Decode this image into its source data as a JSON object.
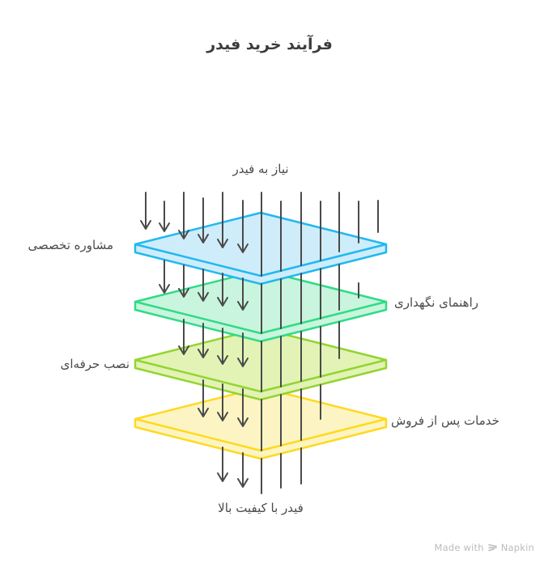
{
  "title": "فرآیند خرید فیدر",
  "diagram": {
    "input_label": "نیاز به فیدر",
    "output_label": "فیدر با کیفیت بالا",
    "arrow_color": "#4a4a4a",
    "layers": [
      {
        "label": "مشاوره تخصصی",
        "side": "left",
        "fill": "#cfecfa",
        "stroke": "#1fb9f0"
      },
      {
        "label": "راهنمای نگهداری",
        "side": "right",
        "fill": "#c9f4dd",
        "stroke": "#2edc86"
      },
      {
        "label": "نصب حرفه‌ای",
        "side": "left",
        "fill": "#e2f3b5",
        "stroke": "#93d431"
      },
      {
        "label": "خدمات پس از فروش",
        "side": "right",
        "fill": "#fcf5c3",
        "stroke": "#ffd91f"
      }
    ]
  },
  "footer": {
    "credit_prefix": "Made with",
    "brand": "Napkin",
    "text_color": "#b9bcbf"
  }
}
